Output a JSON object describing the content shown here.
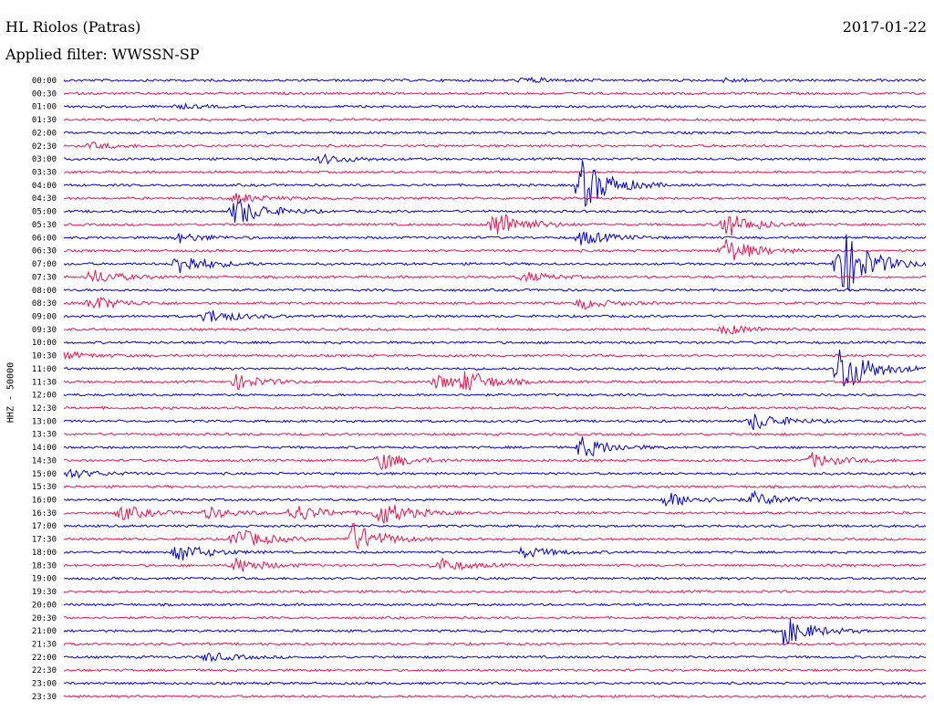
{
  "header": {
    "station": "HL Riolos (Patras)",
    "date": "2017-01-22",
    "filter": "Applied filter: WWSSN-SP"
  },
  "chart_data": {
    "type": "line",
    "title": "HL Riolos (Patras)",
    "ylabel": "HHZ - 50000",
    "trace_colors": [
      "#0000d8",
      "#f0144c"
    ],
    "time_labels": [
      "00:00",
      "00:30",
      "01:00",
      "01:30",
      "02:00",
      "02:30",
      "03:00",
      "03:30",
      "04:00",
      "04:30",
      "05:00",
      "05:30",
      "06:00",
      "06:30",
      "07:00",
      "07:30",
      "08:00",
      "08:30",
      "09:00",
      "09:30",
      "10:00",
      "10:30",
      "11:00",
      "11:30",
      "12:00",
      "12:30",
      "13:00",
      "13:30",
      "14:00",
      "14:30",
      "15:00",
      "15:30",
      "16:00",
      "16:30",
      "17:00",
      "17:30",
      "18:00",
      "18:30",
      "19:00",
      "19:30",
      "20:00",
      "20:30",
      "21:00",
      "21:30",
      "22:00",
      "22:30",
      "23:00",
      "23:30"
    ],
    "events": [
      {
        "row": 0,
        "minute": 16,
        "amp": 3
      },
      {
        "row": 0,
        "minute": 23,
        "amp": 2
      },
      {
        "row": 2,
        "minute": 4,
        "amp": 2
      },
      {
        "row": 5,
        "minute": 1,
        "amp": 3
      },
      {
        "row": 6,
        "minute": 9,
        "amp": 5
      },
      {
        "row": 8,
        "minute": 18,
        "amp": 28
      },
      {
        "row": 9,
        "minute": 6,
        "amp": 5
      },
      {
        "row": 10,
        "minute": 6,
        "amp": 16
      },
      {
        "row": 11,
        "minute": 15,
        "amp": 16
      },
      {
        "row": 11,
        "minute": 23,
        "amp": 14
      },
      {
        "row": 12,
        "minute": 18,
        "amp": 8
      },
      {
        "row": 12,
        "minute": 4,
        "amp": 5
      },
      {
        "row": 13,
        "minute": 23,
        "amp": 14
      },
      {
        "row": 14,
        "minute": 4,
        "amp": 12
      },
      {
        "row": 14,
        "minute": 27,
        "amp": 40
      },
      {
        "row": 15,
        "minute": 1,
        "amp": 8
      },
      {
        "row": 15,
        "minute": 16,
        "amp": 5
      },
      {
        "row": 17,
        "minute": 1,
        "amp": 8
      },
      {
        "row": 17,
        "minute": 18,
        "amp": 6
      },
      {
        "row": 18,
        "minute": 5,
        "amp": 8
      },
      {
        "row": 19,
        "minute": 23,
        "amp": 6
      },
      {
        "row": 21,
        "minute": 0,
        "amp": 4
      },
      {
        "row": 22,
        "minute": 27,
        "amp": 30
      },
      {
        "row": 23,
        "minute": 6,
        "amp": 8
      },
      {
        "row": 23,
        "minute": 13,
        "amp": 8
      },
      {
        "row": 23,
        "minute": 14,
        "amp": 10
      },
      {
        "row": 26,
        "minute": 24,
        "amp": 10
      },
      {
        "row": 28,
        "minute": 18,
        "amp": 12
      },
      {
        "row": 29,
        "minute": 11,
        "amp": 10
      },
      {
        "row": 29,
        "minute": 26,
        "amp": 8
      },
      {
        "row": 30,
        "minute": 0,
        "amp": 6
      },
      {
        "row": 32,
        "minute": 21,
        "amp": 8
      },
      {
        "row": 32,
        "minute": 24,
        "amp": 8
      },
      {
        "row": 33,
        "minute": 2,
        "amp": 8
      },
      {
        "row": 33,
        "minute": 5,
        "amp": 6
      },
      {
        "row": 33,
        "minute": 8,
        "amp": 10
      },
      {
        "row": 33,
        "minute": 11,
        "amp": 14
      },
      {
        "row": 35,
        "minute": 6,
        "amp": 12
      },
      {
        "row": 35,
        "minute": 10,
        "amp": 18
      },
      {
        "row": 36,
        "minute": 4,
        "amp": 10
      },
      {
        "row": 36,
        "minute": 16,
        "amp": 6
      },
      {
        "row": 37,
        "minute": 6,
        "amp": 8
      },
      {
        "row": 37,
        "minute": 13,
        "amp": 8
      },
      {
        "row": 42,
        "minute": 25,
        "amp": 16
      },
      {
        "row": 44,
        "minute": 5,
        "amp": 5
      }
    ]
  }
}
